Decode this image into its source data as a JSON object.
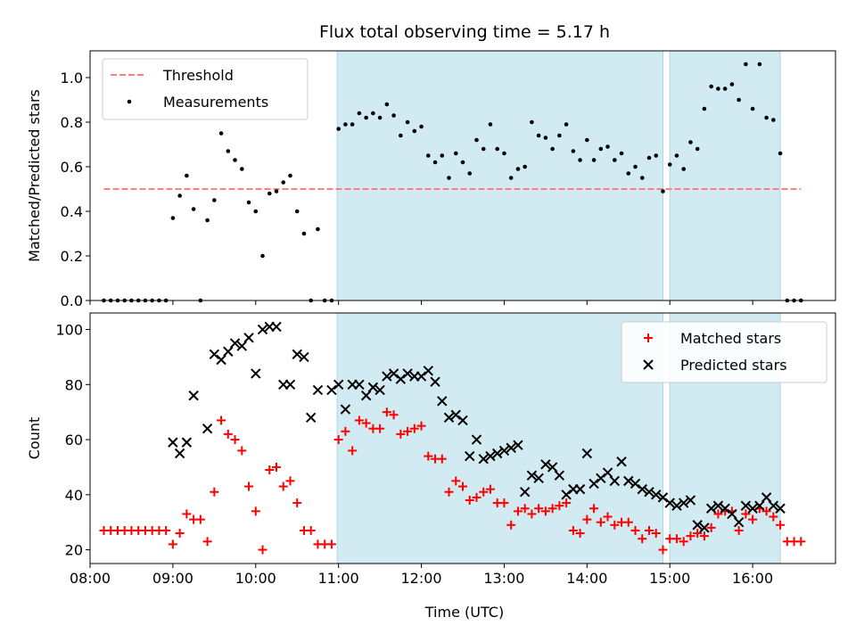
{
  "chart_data": [
    {
      "type": "scatter",
      "title": "Flux total observing time = 5.17 h",
      "xlabel": "",
      "ylabel": "Matched/Predicted stars",
      "xlim": [
        "08:00",
        "17:00"
      ],
      "ylim": [
        0,
        1.12
      ],
      "yticks": [
        "0.0",
        "0.2",
        "0.4",
        "0.6",
        "0.8",
        "1.0"
      ],
      "ytick_values": [
        0,
        0.2,
        0.4,
        0.6,
        0.8,
        1.0
      ],
      "grid": false,
      "legend": {
        "location": "upper-left",
        "entries": [
          "Threshold",
          "Measurements"
        ]
      },
      "shaded_intervals": [
        [
          "10:59",
          "14:55"
        ],
        [
          "15:00",
          "16:20"
        ]
      ],
      "shade_color": "#add8e6",
      "threshold": {
        "name": "Threshold",
        "value": 0.5,
        "x_range": [
          "08:10",
          "16:35"
        ],
        "color": "#ff7f7f"
      },
      "series": [
        {
          "name": "Measurements",
          "color": "#000000",
          "x": [
            "08:10",
            "08:15",
            "08:20",
            "08:25",
            "08:30",
            "08:35",
            "08:40",
            "08:45",
            "08:50",
            "08:55",
            "09:00",
            "09:05",
            "09:10",
            "09:15",
            "09:20",
            "09:25",
            "09:30",
            "09:35",
            "09:40",
            "09:45",
            "09:50",
            "09:55",
            "10:00",
            "10:05",
            "10:10",
            "10:15",
            "10:20",
            "10:25",
            "10:30",
            "10:35",
            "10:40",
            "10:45",
            "10:50",
            "10:55",
            "11:00",
            "11:05",
            "11:10",
            "11:15",
            "11:20",
            "11:25",
            "11:30",
            "11:35",
            "11:40",
            "11:45",
            "11:50",
            "11:55",
            "12:00",
            "12:05",
            "12:10",
            "12:15",
            "12:20",
            "12:25",
            "12:30",
            "12:35",
            "12:40",
            "12:45",
            "12:50",
            "12:55",
            "13:00",
            "13:05",
            "13:10",
            "13:15",
            "13:20",
            "13:25",
            "13:30",
            "13:35",
            "13:40",
            "13:45",
            "13:50",
            "13:55",
            "14:00",
            "14:05",
            "14:10",
            "14:15",
            "14:20",
            "14:25",
            "14:30",
            "14:35",
            "14:40",
            "14:45",
            "14:50",
            "14:55",
            "15:00",
            "15:05",
            "15:10",
            "15:15",
            "15:20",
            "15:25",
            "15:30",
            "15:35",
            "15:40",
            "15:45",
            "15:50",
            "15:55",
            "16:00",
            "16:05",
            "16:10",
            "16:15",
            "16:20",
            "16:25",
            "16:30",
            "16:35"
          ],
          "y": [
            0,
            0,
            0,
            0,
            0,
            0,
            0,
            0,
            0,
            0,
            0.37,
            0.47,
            0.56,
            0.41,
            0,
            0.36,
            0.45,
            0.75,
            0.67,
            0.63,
            0.59,
            0.44,
            0.4,
            0.2,
            0.48,
            0.49,
            0.53,
            0.56,
            0.4,
            0.3,
            0,
            0.32,
            0,
            0,
            0.77,
            0.79,
            0.79,
            0.84,
            0.82,
            0.84,
            0.82,
            0.88,
            0.83,
            0.74,
            0.8,
            0.76,
            0.78,
            0.65,
            0.62,
            0.65,
            0.55,
            0.66,
            0.62,
            0.57,
            0.72,
            0.68,
            0.79,
            0.68,
            0.66,
            0.55,
            0.59,
            0.6,
            0.8,
            0.74,
            0.73,
            0.68,
            0.74,
            0.79,
            0.67,
            0.63,
            0.72,
            0.63,
            0.68,
            0.69,
            0.63,
            0.66,
            0.57,
            0.6,
            0.55,
            0.64,
            0.65,
            0.49,
            0.61,
            0.65,
            0.59,
            0.71,
            0.68,
            0.86,
            0.96,
            0.95,
            0.95,
            0.97,
            0.9,
            1.06,
            0.86,
            1.06,
            0.82,
            0.81,
            0.66,
            0,
            0,
            0
          ]
        }
      ]
    },
    {
      "type": "scatter",
      "title": "",
      "xlabel": "Time (UTC)",
      "ylabel": "Count",
      "xlim": [
        "08:00",
        "17:00"
      ],
      "ylim": [
        15,
        106
      ],
      "yticks": [
        "20",
        "40",
        "60",
        "80",
        "100"
      ],
      "ytick_values": [
        20,
        40,
        60,
        80,
        100
      ],
      "xticks": [
        "08:00",
        "09:00",
        "10:00",
        "11:00",
        "12:00",
        "13:00",
        "14:00",
        "15:00",
        "16:00"
      ],
      "grid": false,
      "legend": {
        "location": "upper-right",
        "entries": [
          "Matched stars",
          "Predicted stars"
        ]
      },
      "shaded_intervals": [
        [
          "10:59",
          "14:55"
        ],
        [
          "15:00",
          "16:20"
        ]
      ],
      "shade_color": "#add8e6",
      "series": [
        {
          "name": "Matched stars",
          "marker": "plus",
          "color": "#ff0000",
          "x": [
            "08:10",
            "08:15",
            "08:20",
            "08:25",
            "08:30",
            "08:35",
            "08:40",
            "08:45",
            "08:50",
            "08:55",
            "09:00",
            "09:05",
            "09:10",
            "09:15",
            "09:20",
            "09:25",
            "09:30",
            "09:35",
            "09:40",
            "09:45",
            "09:50",
            "09:55",
            "10:00",
            "10:05",
            "10:10",
            "10:15",
            "10:20",
            "10:25",
            "10:30",
            "10:35",
            "10:40",
            "10:45",
            "10:50",
            "10:55",
            "11:00",
            "11:05",
            "11:10",
            "11:15",
            "11:20",
            "11:25",
            "11:30",
            "11:35",
            "11:40",
            "11:45",
            "11:50",
            "11:55",
            "12:00",
            "12:05",
            "12:10",
            "12:15",
            "12:20",
            "12:25",
            "12:30",
            "12:35",
            "12:40",
            "12:45",
            "12:50",
            "12:55",
            "13:00",
            "13:05",
            "13:10",
            "13:15",
            "13:20",
            "13:25",
            "13:30",
            "13:35",
            "13:40",
            "13:45",
            "13:50",
            "13:55",
            "14:00",
            "14:05",
            "14:10",
            "14:15",
            "14:20",
            "14:25",
            "14:30",
            "14:35",
            "14:40",
            "14:45",
            "14:50",
            "14:55",
            "15:00",
            "15:05",
            "15:10",
            "15:15",
            "15:20",
            "15:25",
            "15:30",
            "15:35",
            "15:40",
            "15:45",
            "15:50",
            "15:55",
            "16:00",
            "16:05",
            "16:10",
            "16:15",
            "16:20",
            "16:25",
            "16:30",
            "16:35"
          ],
          "y": [
            27,
            27,
            27,
            27,
            27,
            27,
            27,
            27,
            27,
            27,
            22,
            26,
            33,
            31,
            31,
            23,
            41,
            67,
            62,
            60,
            56,
            43,
            34,
            20,
            49,
            50,
            43,
            45,
            37,
            27,
            27,
            22,
            22,
            22,
            60,
            63,
            56,
            67,
            66,
            64,
            64,
            70,
            69,
            62,
            63,
            64,
            65,
            54,
            53,
            53,
            41,
            45,
            43,
            38,
            39,
            41,
            42,
            37,
            37,
            29,
            34,
            35,
            33,
            35,
            34,
            35,
            36,
            37,
            27,
            26,
            31,
            35,
            30,
            32,
            29,
            30,
            30,
            27,
            24,
            27,
            26,
            20,
            24,
            24,
            23,
            25,
            26,
            25,
            28,
            33,
            34,
            34,
            27,
            33,
            31,
            35,
            34,
            32,
            29,
            23,
            23,
            23
          ]
        },
        {
          "name": "Predicted stars",
          "marker": "x",
          "color": "#000000",
          "x": [
            "09:00",
            "09:05",
            "09:10",
            "09:15",
            "09:25",
            "09:30",
            "09:35",
            "09:40",
            "09:45",
            "09:50",
            "09:55",
            "10:00",
            "10:05",
            "10:10",
            "10:15",
            "10:20",
            "10:25",
            "10:30",
            "10:35",
            "10:40",
            "10:45",
            "10:55",
            "11:00",
            "11:05",
            "11:10",
            "11:15",
            "11:20",
            "11:25",
            "11:30",
            "11:35",
            "11:40",
            "11:45",
            "11:50",
            "11:55",
            "12:00",
            "12:05",
            "12:10",
            "12:15",
            "12:20",
            "12:25",
            "12:30",
            "12:35",
            "12:40",
            "12:45",
            "12:50",
            "12:55",
            "13:00",
            "13:05",
            "13:10",
            "13:15",
            "13:20",
            "13:25",
            "13:30",
            "13:35",
            "13:40",
            "13:45",
            "13:50",
            "13:55",
            "14:00",
            "14:05",
            "14:10",
            "14:15",
            "14:20",
            "14:25",
            "14:30",
            "14:35",
            "14:40",
            "14:45",
            "14:50",
            "14:55",
            "15:00",
            "15:05",
            "15:10",
            "15:15",
            "15:20",
            "15:25",
            "15:30",
            "15:35",
            "15:40",
            "15:45",
            "15:50",
            "15:55",
            "16:00",
            "16:05",
            "16:10",
            "16:15",
            "16:20"
          ],
          "y": [
            59,
            55,
            59,
            76,
            64,
            91,
            89,
            92,
            95,
            94,
            97,
            84,
            100,
            101,
            101,
            80,
            80,
            91,
            90,
            68,
            78,
            78,
            80,
            71,
            80,
            80,
            76,
            79,
            78,
            83,
            84,
            82,
            84,
            83,
            83,
            85,
            81,
            74,
            68,
            69,
            67,
            54,
            60,
            53,
            54,
            55,
            56,
            57,
            58,
            41,
            47,
            46,
            51,
            50,
            47,
            40,
            42,
            42,
            55,
            44,
            46,
            48,
            45,
            52,
            45,
            44,
            42,
            41,
            40,
            39,
            37,
            36,
            37,
            38,
            29,
            28,
            35,
            36,
            35,
            33,
            30,
            36,
            35,
            36,
            39,
            36,
            35
          ]
        }
      ]
    }
  ]
}
